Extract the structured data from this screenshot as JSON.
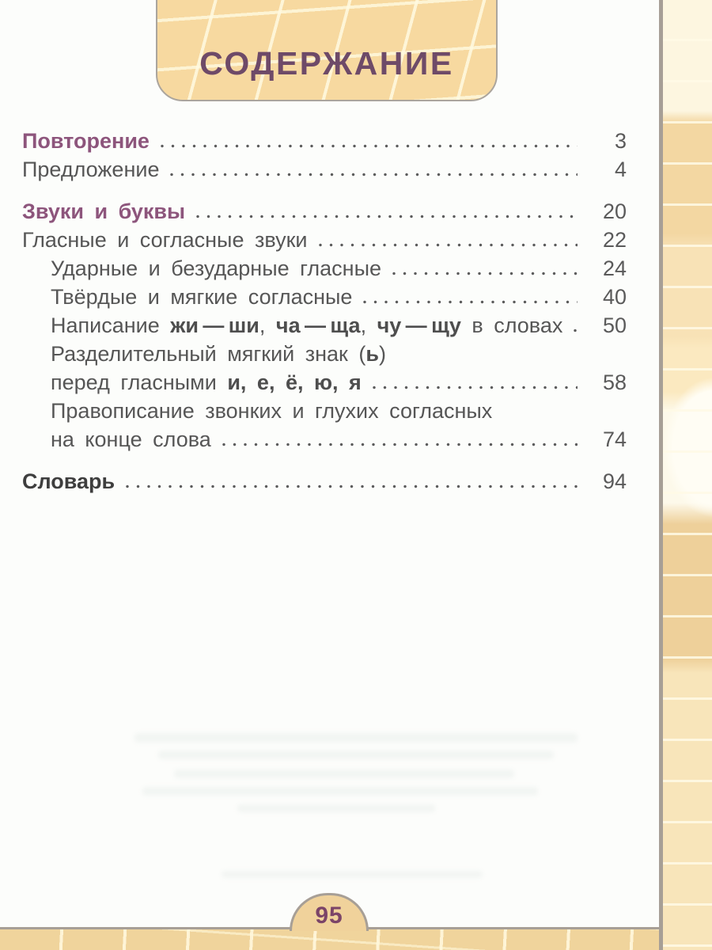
{
  "page": {
    "title": "СОДЕРЖАНИЕ",
    "page_number": "95",
    "colors": {
      "title_text": "#6e4a68",
      "section_heading": "#8d557c",
      "body_text": "#565656",
      "tan_fill": "#f6d99f",
      "band_border": "#a79f96"
    }
  },
  "toc": {
    "rows": [
      {
        "style": "section-purple",
        "indent": 0,
        "gap_before": false,
        "segments": [
          {
            "t": "Повторение",
            "b": false
          }
        ],
        "page": "3"
      },
      {
        "style": "normal",
        "indent": 0,
        "gap_before": false,
        "segments": [
          {
            "t": "Предложение",
            "b": false
          }
        ],
        "page": "4"
      },
      {
        "style": "section-purple",
        "indent": 0,
        "gap_before": true,
        "segments": [
          {
            "t": "Звуки и буквы",
            "b": false
          }
        ],
        "page": "20"
      },
      {
        "style": "normal",
        "indent": 0,
        "gap_before": false,
        "segments": [
          {
            "t": "Гласные и согласные звуки",
            "b": false
          }
        ],
        "page": "22"
      },
      {
        "style": "normal",
        "indent": 1,
        "gap_before": false,
        "segments": [
          {
            "t": "Ударные и безударные гласные",
            "b": false
          }
        ],
        "page": "24"
      },
      {
        "style": "normal",
        "indent": 1,
        "gap_before": false,
        "segments": [
          {
            "t": "Твёрдые и мягкие согласные",
            "b": false
          }
        ],
        "page": "40"
      },
      {
        "style": "normal",
        "indent": 1,
        "gap_before": false,
        "segments": [
          {
            "t": "Написание ",
            "b": false
          },
          {
            "t": "жи — ши",
            "b": true
          },
          {
            "t": ", ",
            "b": false
          },
          {
            "t": "ча — ща",
            "b": true
          },
          {
            "t": ", ",
            "b": false
          },
          {
            "t": "чу — щу",
            "b": true
          },
          {
            "t": " в словах",
            "b": false
          }
        ],
        "page": "50"
      },
      {
        "style": "normal",
        "indent": 1,
        "gap_before": false,
        "segments": [
          {
            "t": "Разделительный мягкий знак (",
            "b": false
          },
          {
            "t": "ь",
            "b": true
          },
          {
            "t": ")",
            "b": false
          }
        ],
        "page": null
      },
      {
        "style": "normal",
        "indent": 1,
        "gap_before": false,
        "segments": [
          {
            "t": "перед гласными ",
            "b": false
          },
          {
            "t": "и, е, ё, ю, я",
            "b": true
          }
        ],
        "page": "58"
      },
      {
        "style": "normal",
        "indent": 1,
        "gap_before": false,
        "segments": [
          {
            "t": "Правописание звонких и глухих согласных",
            "b": false
          }
        ],
        "page": null
      },
      {
        "style": "normal",
        "indent": 1,
        "gap_before": false,
        "segments": [
          {
            "t": "на конце слова",
            "b": false
          }
        ],
        "page": "74"
      },
      {
        "style": "section-dark",
        "indent": 0,
        "gap_before": true,
        "segments": [
          {
            "t": "Словарь",
            "b": false
          }
        ],
        "page": "94"
      }
    ]
  }
}
